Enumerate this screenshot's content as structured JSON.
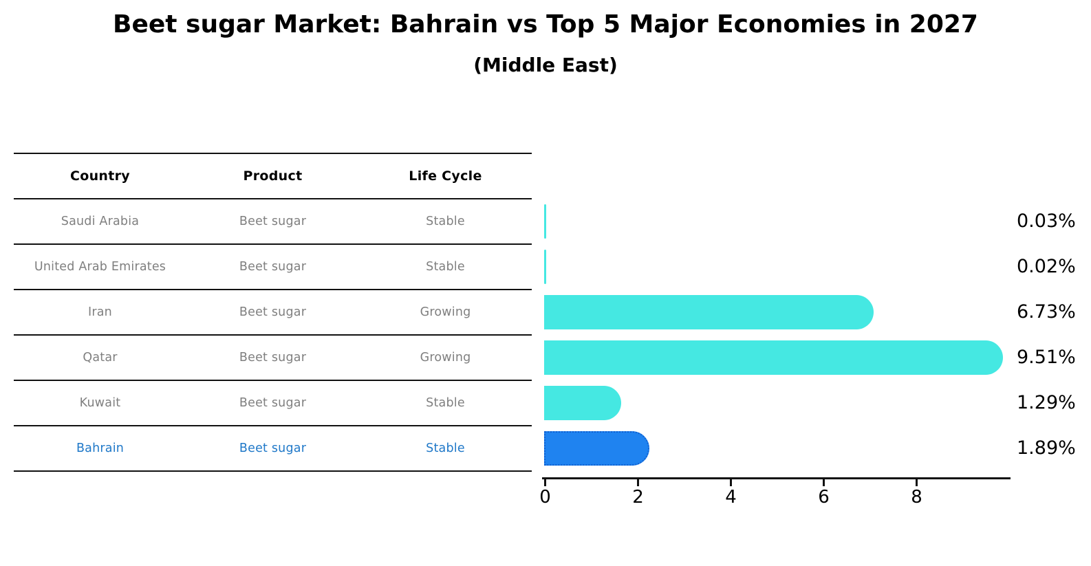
{
  "header": {
    "title": "Beet sugar Market: Bahrain vs Top 5 Major Economies in 2027",
    "subtitle": "(Middle East)"
  },
  "table": {
    "headers": [
      "Country",
      "Product",
      "Life Cycle"
    ],
    "rows": [
      {
        "country": "Saudi Arabia",
        "product": "Beet sugar",
        "life_cycle": "Stable",
        "highlight": false
      },
      {
        "country": "United Arab Emirates",
        "product": "Beet sugar",
        "life_cycle": "Stable",
        "highlight": false
      },
      {
        "country": "Iran",
        "product": "Beet sugar",
        "life_cycle": "Growing",
        "highlight": false
      },
      {
        "country": "Qatar",
        "product": "Beet sugar",
        "life_cycle": "Growing",
        "highlight": false
      },
      {
        "country": "Kuwait",
        "product": "Beet sugar",
        "life_cycle": "Stable",
        "highlight": false
      },
      {
        "country": "Bahrain",
        "product": "Beet sugar",
        "life_cycle": "Stable",
        "highlight": true
      }
    ]
  },
  "chart_data": {
    "type": "bar",
    "orientation": "horizontal",
    "title": "Beet sugar Market: Bahrain vs Top 5 Major Economies in 2027",
    "subtitle": "(Middle East)",
    "categories": [
      "Saudi Arabia",
      "United Arab Emirates",
      "Iran",
      "Qatar",
      "Kuwait",
      "Bahrain"
    ],
    "values": [
      0.03,
      0.02,
      6.73,
      9.51,
      1.29,
      1.89
    ],
    "value_labels": [
      "0.03%",
      "0.02%",
      "6.73%",
      "9.51%",
      "1.29%",
      "1.89%"
    ],
    "x_ticks": [
      0,
      2,
      4,
      6,
      8
    ],
    "x_tick_labels": [
      "0",
      "2",
      "4",
      "6",
      "8"
    ],
    "xlim": [
      0,
      10
    ],
    "grid": false,
    "legend": false,
    "bar_color": "#45e8e2",
    "highlight_bar_color": "#1f83f0",
    "highlight_index": 5,
    "highlight_label_color": "#1f78c8"
  }
}
